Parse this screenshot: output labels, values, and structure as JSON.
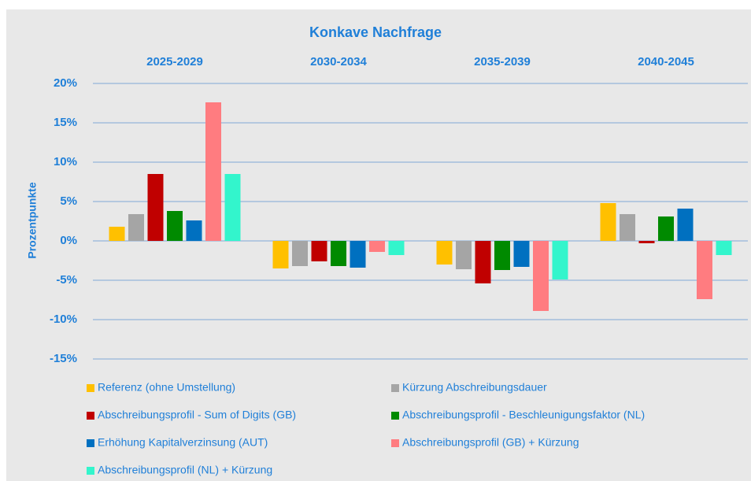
{
  "chart_data": {
    "type": "bar",
    "title": "Konkave Nachfrage",
    "y_label": "Prozentpunkte",
    "categories": [
      "2025-2029",
      "2030-2034",
      "2035-2039",
      "2040-2045"
    ],
    "series": [
      {
        "name": "Referenz (ohne Umstellung)",
        "color": "#ffc000",
        "values": [
          1.8,
          -3.5,
          -3.0,
          4.8
        ]
      },
      {
        "name": "Kürzung Abschreibungsdauer",
        "color": "#a5a5a5",
        "values": [
          3.4,
          -3.2,
          -3.6,
          3.4
        ]
      },
      {
        "name": "Abschreibungsprofil - Sum of Digits (GB)",
        "color": "#c00000",
        "values": [
          8.5,
          -2.6,
          -5.4,
          -0.3
        ]
      },
      {
        "name": "Abschreibungsprofil - Beschleunigungsfaktor (NL)",
        "color": "#008a00",
        "values": [
          3.8,
          -3.2,
          -3.7,
          3.1
        ]
      },
      {
        "name": "Erhöhung Kapitalverzinsung (AUT)",
        "color": "#0070c0",
        "values": [
          2.6,
          -3.4,
          -3.3,
          4.1
        ]
      },
      {
        "name": "Abschreibungsprofil (GB) + Kürzung",
        "color": "#ff7c80",
        "values": [
          17.6,
          -1.4,
          -8.9,
          -7.4
        ]
      },
      {
        "name": "Abschreibungsprofil (NL) + Kürzung",
        "color": "#33f5cc",
        "values": [
          8.5,
          -1.8,
          -4.9,
          -1.8
        ]
      }
    ],
    "ylim": [
      -15,
      20
    ],
    "yticks": [
      {
        "value": -15,
        "label": "-15%"
      },
      {
        "value": -10,
        "label": "-10%"
      },
      {
        "value": -5,
        "label": "-5%"
      },
      {
        "value": 0,
        "label": "0%"
      },
      {
        "value": 5,
        "label": "5%"
      },
      {
        "value": 10,
        "label": "10%"
      },
      {
        "value": 15,
        "label": "15%"
      },
      {
        "value": 20,
        "label": "20%"
      }
    ],
    "grid": true,
    "legend": "bottom"
  }
}
